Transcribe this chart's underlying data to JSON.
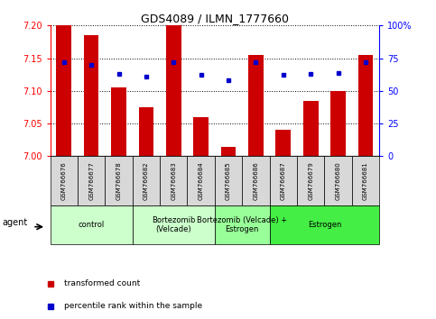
{
  "title": "GDS4089 / ILMN_1777660",
  "samples": [
    "GSM766676",
    "GSM766677",
    "GSM766678",
    "GSM766682",
    "GSM766683",
    "GSM766684",
    "GSM766685",
    "GSM766686",
    "GSM766687",
    "GSM766679",
    "GSM766680",
    "GSM766681"
  ],
  "red_values": [
    7.2,
    7.185,
    7.105,
    7.075,
    7.2,
    7.06,
    7.015,
    7.155,
    7.04,
    7.085,
    7.1,
    7.155
  ],
  "blue_values": [
    72,
    70,
    63,
    61,
    72,
    62,
    58,
    72,
    62,
    63,
    64,
    72
  ],
  "ylim_left": [
    7.0,
    7.2
  ],
  "ylim_right": [
    0,
    100
  ],
  "yticks_left": [
    7.0,
    7.05,
    7.1,
    7.15,
    7.2
  ],
  "yticks_right": [
    0,
    25,
    50,
    75,
    100
  ],
  "ytick_right_labels": [
    "0",
    "25",
    "50",
    "75",
    "100%"
  ],
  "groups": [
    {
      "label": "control",
      "start": 0,
      "end": 3,
      "color": "#ccffcc"
    },
    {
      "label": "Bortezomib\n(Velcade)",
      "start": 3,
      "end": 6,
      "color": "#ccffcc"
    },
    {
      "label": "Bortezomib (Velcade) +\nEstrogen",
      "start": 6,
      "end": 8,
      "color": "#99ff99"
    },
    {
      "label": "Estrogen",
      "start": 8,
      "end": 12,
      "color": "#44ee44"
    }
  ],
  "bar_color": "#cc0000",
  "dot_color": "#0000cc",
  "bar_bottom": 7.0,
  "legend_items": [
    {
      "label": "transformed count",
      "color": "#cc0000"
    },
    {
      "label": "percentile rank within the sample",
      "color": "#0000cc"
    }
  ],
  "agent_label": "agent"
}
